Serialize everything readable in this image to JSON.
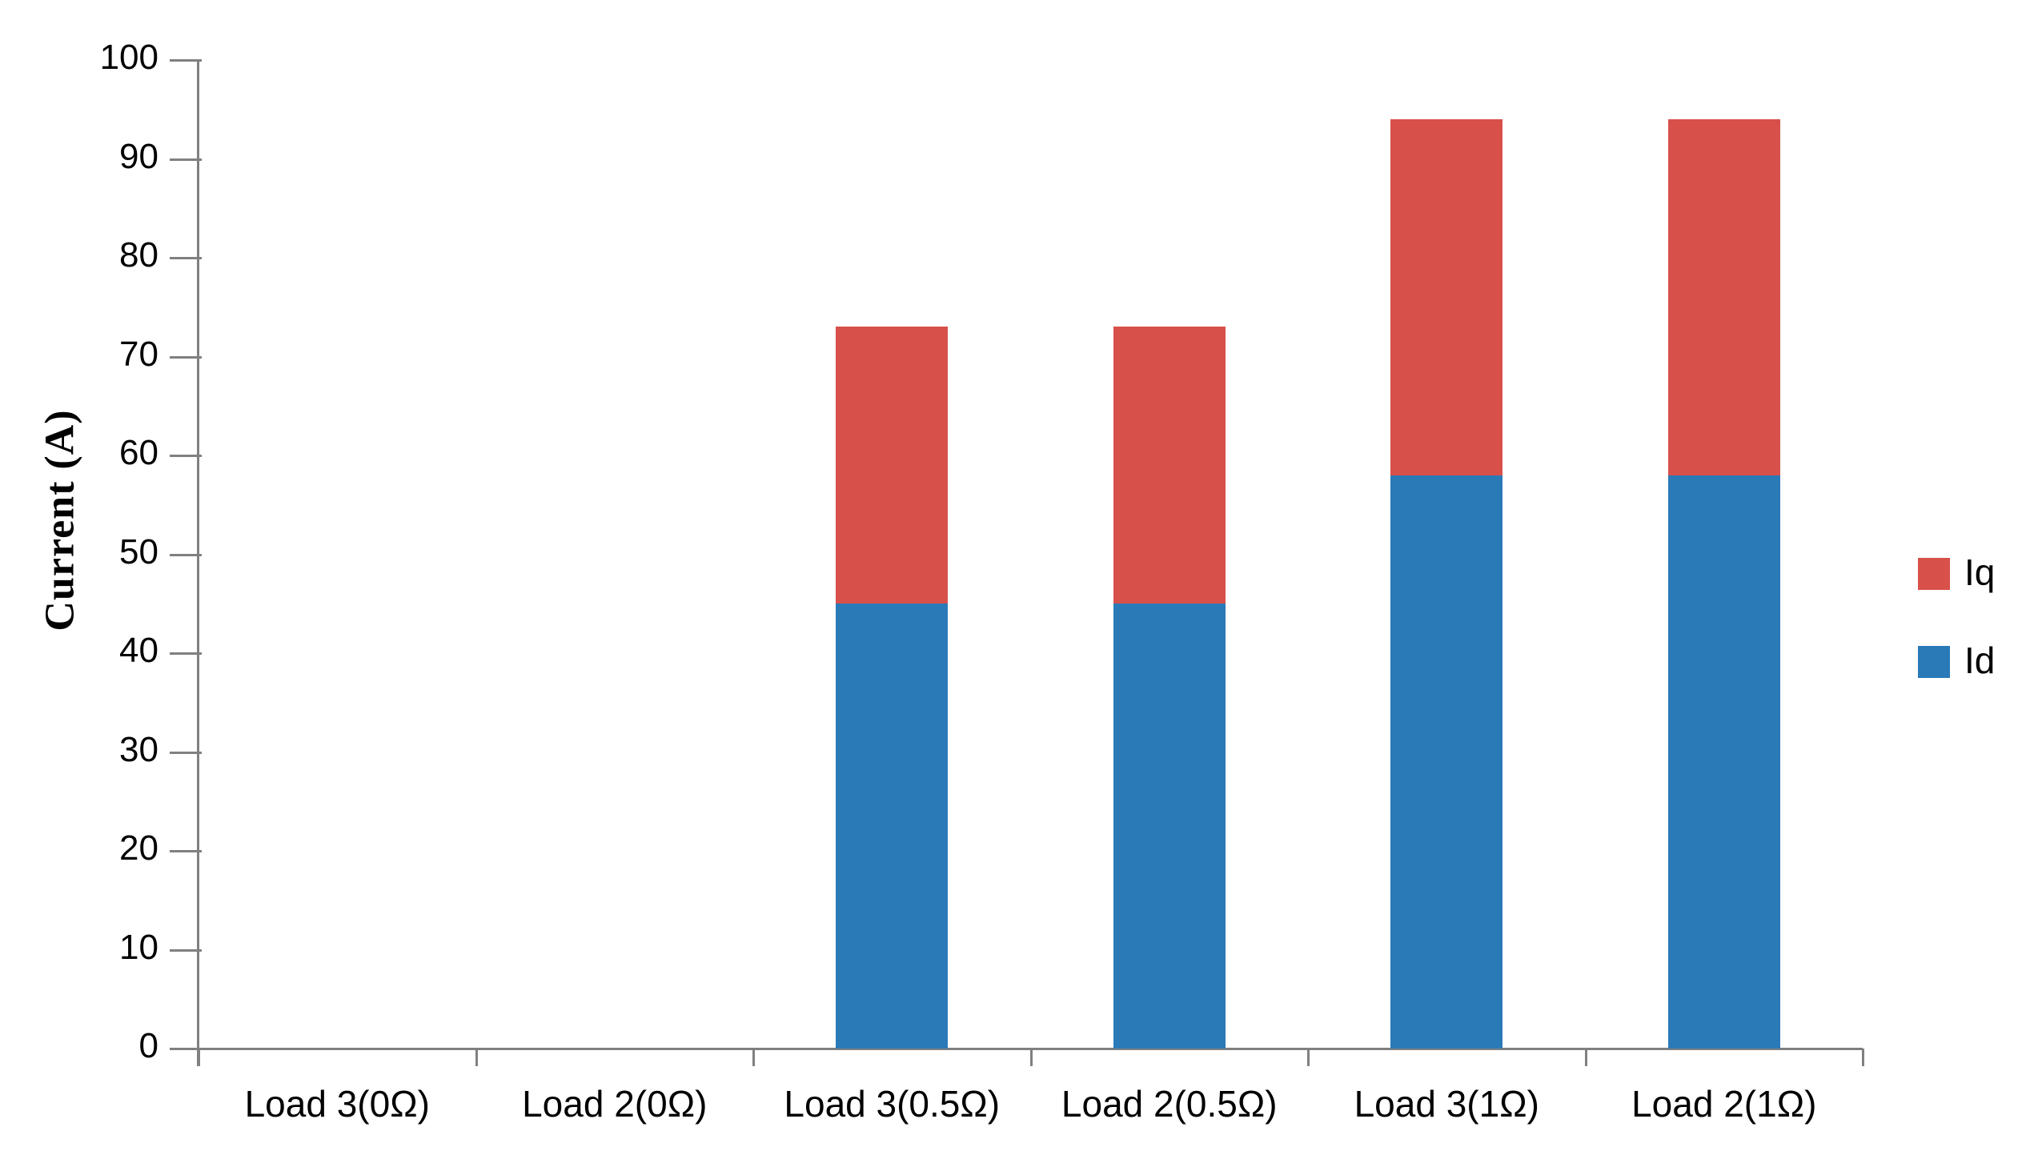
{
  "chart_data": {
    "type": "bar",
    "stacked": true,
    "title": "",
    "xlabel": "",
    "ylabel": "Current (A)",
    "categories": [
      "Load 3(0Ω)",
      "Load 2(0Ω)",
      "Load 3(0.5Ω)",
      "Load 2(0.5Ω)",
      "Load 3(1Ω)",
      "Load 2(1Ω)"
    ],
    "series": [
      {
        "name": "Id",
        "color": "#2A7AB8",
        "values": [
          0,
          0,
          45,
          45,
          58,
          58
        ]
      },
      {
        "name": "Iq",
        "color": "#D8504A",
        "values": [
          0,
          0,
          28,
          28,
          36,
          36
        ]
      }
    ],
    "totals": [
      0,
      0,
      73,
      73,
      94,
      94
    ],
    "ylim": [
      0,
      100
    ],
    "ytick_step": 10,
    "ytick_labels": [
      "0",
      "10",
      "20",
      "30",
      "40",
      "50",
      "60",
      "70",
      "80",
      "90",
      "100"
    ],
    "grid": false,
    "legend": {
      "position": "right",
      "entries": [
        {
          "label": "Iq",
          "color": "#D8504A"
        },
        {
          "label": "Id",
          "color": "#2A7AB8"
        }
      ]
    },
    "axis_color": "#808080",
    "text_color": "#000000",
    "background_color": "#FFFFFF"
  }
}
